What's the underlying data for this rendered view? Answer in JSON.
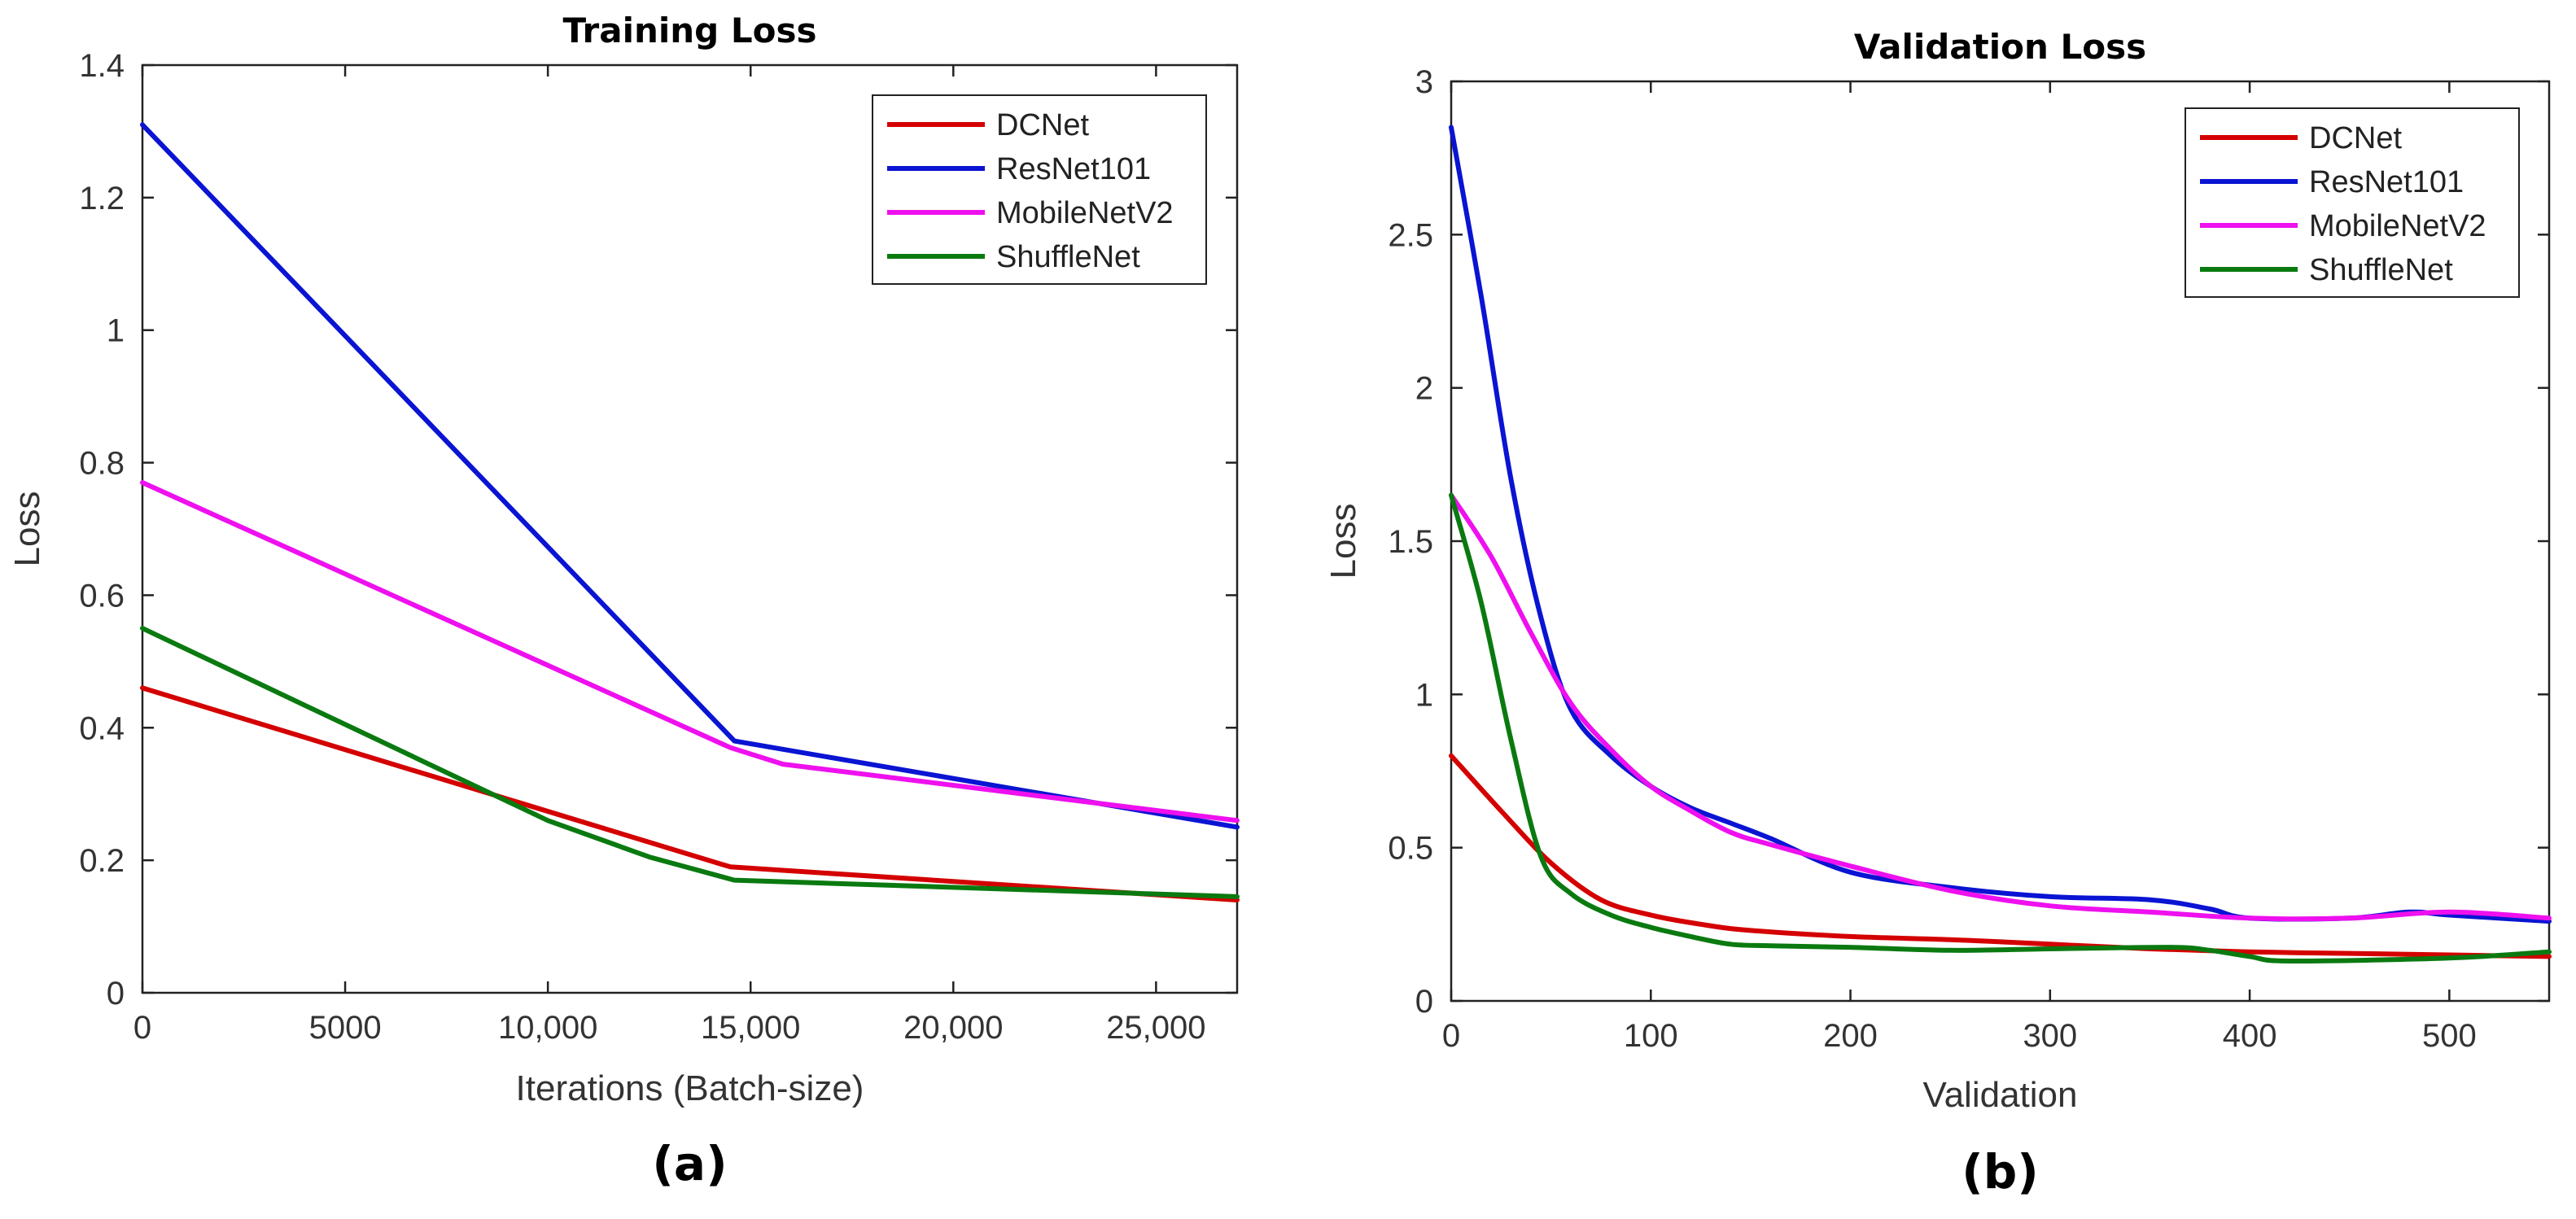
{
  "colors": {
    "DCNet": "#d40000",
    "ResNet101": "#0a14d2",
    "MobileNetV2": "#ee10ee",
    "ShuffleNet": "#0a7a10"
  },
  "chart_data": [
    {
      "type": "line",
      "title": "Training Loss",
      "xlabel": "Iterations (Batch-size)",
      "ylabel": "Loss",
      "panel_label": "(a)",
      "xlim": [
        0,
        27000
      ],
      "ylim": [
        0,
        1.4
      ],
      "xticks": [
        0,
        5000,
        10000,
        15000,
        20000,
        25000
      ],
      "xtick_labels": [
        "0",
        "5000",
        "10,000",
        "15,000",
        "20,000",
        "25,000"
      ],
      "yticks": [
        0,
        0.2,
        0.4,
        0.6,
        0.8,
        1,
        1.2,
        1.4
      ],
      "ytick_labels": [
        "0",
        "0.2",
        "0.4",
        "0.6",
        "0.8",
        "1",
        "1.2",
        "1.4"
      ],
      "legend_position": "top-right",
      "grid": false,
      "series": [
        {
          "name": "DCNet",
          "x": [
            0,
            14500,
            27000
          ],
          "y": [
            0.46,
            0.19,
            0.14
          ]
        },
        {
          "name": "ResNet101",
          "x": [
            0,
            14600,
            27000
          ],
          "y": [
            1.31,
            0.38,
            0.25
          ]
        },
        {
          "name": "MobileNetV2",
          "x": [
            0,
            14500,
            15800,
            27000
          ],
          "y": [
            0.77,
            0.37,
            0.345,
            0.26
          ]
        },
        {
          "name": "ShuffleNet",
          "x": [
            0,
            10000,
            12500,
            14600,
            27000
          ],
          "y": [
            0.55,
            0.26,
            0.205,
            0.17,
            0.145
          ]
        }
      ]
    },
    {
      "type": "line",
      "title": "Validation Loss",
      "xlabel": "Validation",
      "ylabel": "Loss",
      "panel_label": "(b)",
      "xlim": [
        0,
        550
      ],
      "ylim": [
        0,
        3
      ],
      "xticks": [
        0,
        100,
        200,
        300,
        400,
        500
      ],
      "xtick_labels": [
        "0",
        "100",
        "200",
        "300",
        "400",
        "500"
      ],
      "yticks": [
        0,
        0.5,
        1,
        1.5,
        2,
        2.5,
        3
      ],
      "ytick_labels": [
        "0",
        "0.5",
        "1",
        "1.5",
        "2",
        "2.5",
        "3"
      ],
      "legend_position": "top-right",
      "grid": false,
      "series": [
        {
          "name": "DCNet",
          "x": [
            0,
            25,
            50,
            75,
            100,
            125,
            150,
            200,
            250,
            300,
            350,
            400,
            450,
            500,
            550
          ],
          "y": [
            0.8,
            0.62,
            0.45,
            0.33,
            0.28,
            0.25,
            0.23,
            0.21,
            0.2,
            0.185,
            0.17,
            0.16,
            0.155,
            0.15,
            0.145
          ]
        },
        {
          "name": "ResNet101",
          "x": [
            0,
            15,
            30,
            45,
            60,
            80,
            100,
            120,
            140,
            160,
            200,
            250,
            300,
            350,
            380,
            400,
            450,
            480,
            500,
            550
          ],
          "y": [
            2.85,
            2.3,
            1.7,
            1.25,
            0.95,
            0.8,
            0.7,
            0.63,
            0.58,
            0.53,
            0.42,
            0.37,
            0.34,
            0.33,
            0.3,
            0.27,
            0.27,
            0.29,
            0.28,
            0.26
          ]
        },
        {
          "name": "MobileNetV2",
          "x": [
            0,
            20,
            40,
            60,
            80,
            100,
            120,
            140,
            160,
            200,
            250,
            300,
            350,
            400,
            450,
            500,
            550
          ],
          "y": [
            1.65,
            1.45,
            1.2,
            0.97,
            0.82,
            0.7,
            0.62,
            0.55,
            0.51,
            0.44,
            0.36,
            0.31,
            0.29,
            0.27,
            0.27,
            0.29,
            0.27
          ]
        },
        {
          "name": "ShuffleNet",
          "x": [
            0,
            15,
            30,
            45,
            60,
            80,
            100,
            120,
            140,
            160,
            200,
            250,
            300,
            360,
            380,
            400,
            420,
            500,
            550
          ],
          "y": [
            1.65,
            1.3,
            0.85,
            0.47,
            0.35,
            0.28,
            0.24,
            0.21,
            0.185,
            0.18,
            0.175,
            0.165,
            0.17,
            0.175,
            0.165,
            0.145,
            0.13,
            0.14,
            0.16
          ]
        }
      ]
    }
  ]
}
